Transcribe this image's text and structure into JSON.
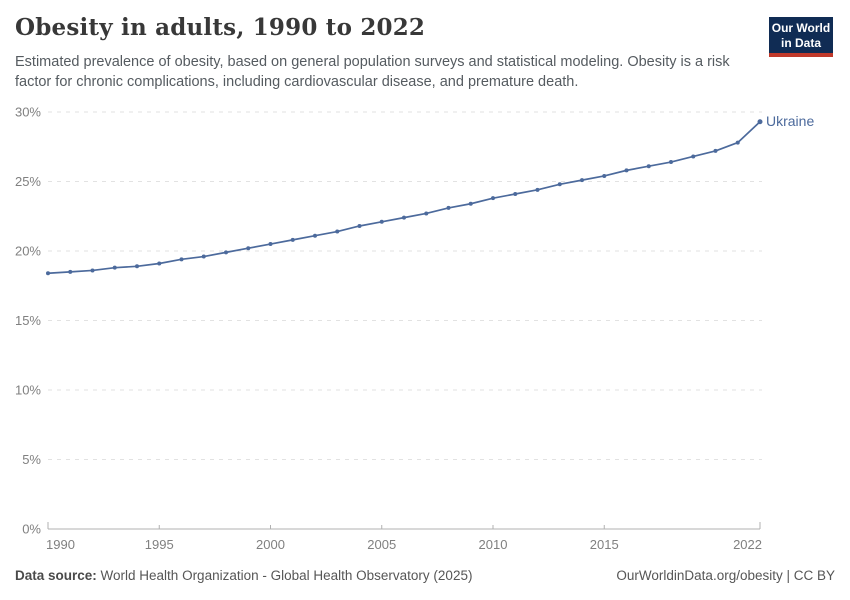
{
  "header": {
    "title": "Obesity in adults, 1990 to 2022",
    "subtitle": "Estimated prevalence of obesity, based on general population surveys and statistical modeling. Obesity is a risk factor for chronic complications, including cardiovascular disease, and premature death.",
    "logo": {
      "line1": "Our World",
      "line2": "in Data",
      "bg_color": "#102c54",
      "accent_color": "#c0392b"
    }
  },
  "chart_data": {
    "type": "line",
    "title": "Obesity in adults, 1990 to 2022",
    "x": [
      1990,
      1991,
      1992,
      1993,
      1994,
      1995,
      1996,
      1997,
      1998,
      1999,
      2000,
      2001,
      2002,
      2003,
      2004,
      2005,
      2006,
      2007,
      2008,
      2009,
      2010,
      2011,
      2012,
      2013,
      2014,
      2015,
      2016,
      2017,
      2018,
      2019,
      2020,
      2021,
      2022
    ],
    "series": [
      {
        "name": "Ukraine",
        "color": "#4c6a9c",
        "values": [
          18.4,
          18.5,
          18.6,
          18.8,
          18.9,
          19.1,
          19.4,
          19.6,
          19.9,
          20.2,
          20.5,
          20.8,
          21.1,
          21.4,
          21.8,
          22.1,
          22.4,
          22.7,
          23.1,
          23.4,
          23.8,
          24.1,
          24.4,
          24.8,
          25.1,
          25.4,
          25.8,
          26.1,
          26.4,
          26.8,
          27.2,
          27.8,
          29.3
        ]
      }
    ],
    "xlabel": "",
    "ylabel": "",
    "y_unit": "%",
    "ylim": [
      0,
      30
    ],
    "xlim": [
      1990,
      2022
    ],
    "y_ticks": [
      0,
      5,
      10,
      15,
      20,
      25,
      30
    ],
    "y_tick_labels": [
      "0%",
      "5%",
      "10%",
      "15%",
      "20%",
      "25%",
      "30%"
    ],
    "x_ticks": [
      1990,
      1995,
      2000,
      2005,
      2010,
      2015,
      2022
    ],
    "x_tick_labels": [
      "1990",
      "1995",
      "2000",
      "2005",
      "2010",
      "2015",
      "2022"
    ],
    "grid": "dashed-horizontal",
    "legend_position": "end-of-line-label",
    "axis_color": "#b0b0b0",
    "gridline_color": "#e2e2e2",
    "tick_label_color": "#808080"
  },
  "footer": {
    "datasource_label": "Data source:",
    "datasource_text": " World Health Organization - Global Health Observatory (2025)",
    "rights": "OurWorldinData.org/obesity | CC BY"
  }
}
